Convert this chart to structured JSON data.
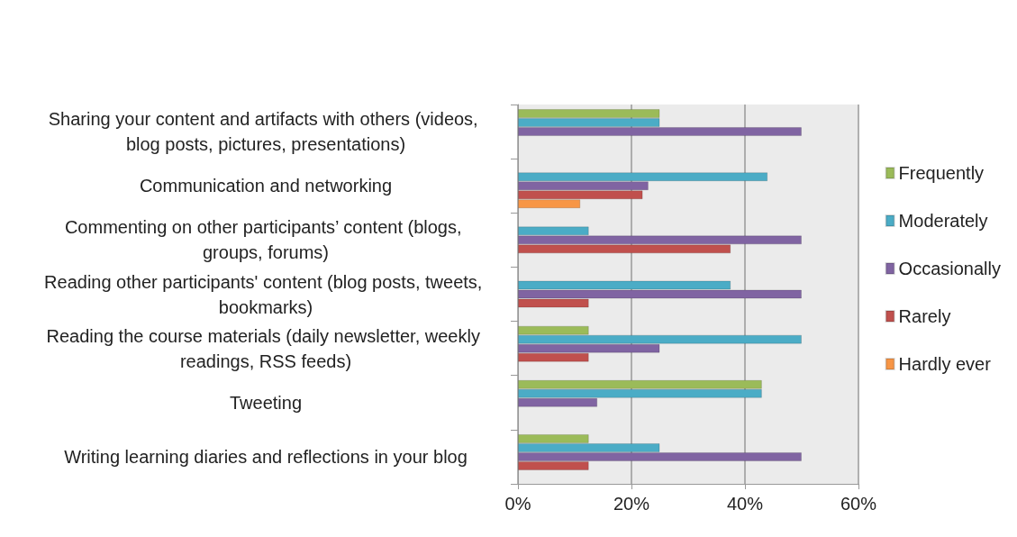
{
  "chart_data": {
    "type": "bar",
    "orientation": "horizontal",
    "categories": [
      "Sharing your content and artifacts with others (videos, blog posts, pictures, presentations)",
      "Communication and networking",
      "Commenting on other participants’ content (blogs, groups, forums)",
      "Reading other participants' content (blog posts, tweets, bookmarks)",
      "Reading the course materials (daily newsletter, weekly readings, RSS feeds)",
      "Tweeting",
      "Writing learning diaries and reflections in your blog"
    ],
    "series": [
      {
        "name": "Frequently",
        "color": "#9bbb59",
        "values": [
          25,
          null,
          null,
          null,
          12.5,
          43,
          12.5
        ]
      },
      {
        "name": "Moderately",
        "color": "#4bacc6",
        "values": [
          25,
          44,
          12.5,
          37.5,
          50,
          43,
          25
        ]
      },
      {
        "name": "Occasionally",
        "color": "#8064a2",
        "values": [
          50,
          23,
          50,
          50,
          25,
          14,
          50
        ]
      },
      {
        "name": "Rarely",
        "color": "#c0504d",
        "values": [
          null,
          22,
          37.5,
          12.5,
          12.5,
          null,
          12.5
        ]
      },
      {
        "name": "Hardly ever",
        "color": "#f79646",
        "values": [
          null,
          11,
          null,
          null,
          null,
          null,
          null
        ]
      }
    ],
    "xlim": [
      0,
      60
    ],
    "xticks": [
      {
        "value": 0,
        "label": "0%"
      },
      {
        "value": 20,
        "label": "20%"
      },
      {
        "value": 40,
        "label": "40%"
      },
      {
        "value": 60,
        "label": "60%"
      }
    ],
    "grid": "x",
    "legend": "right"
  }
}
